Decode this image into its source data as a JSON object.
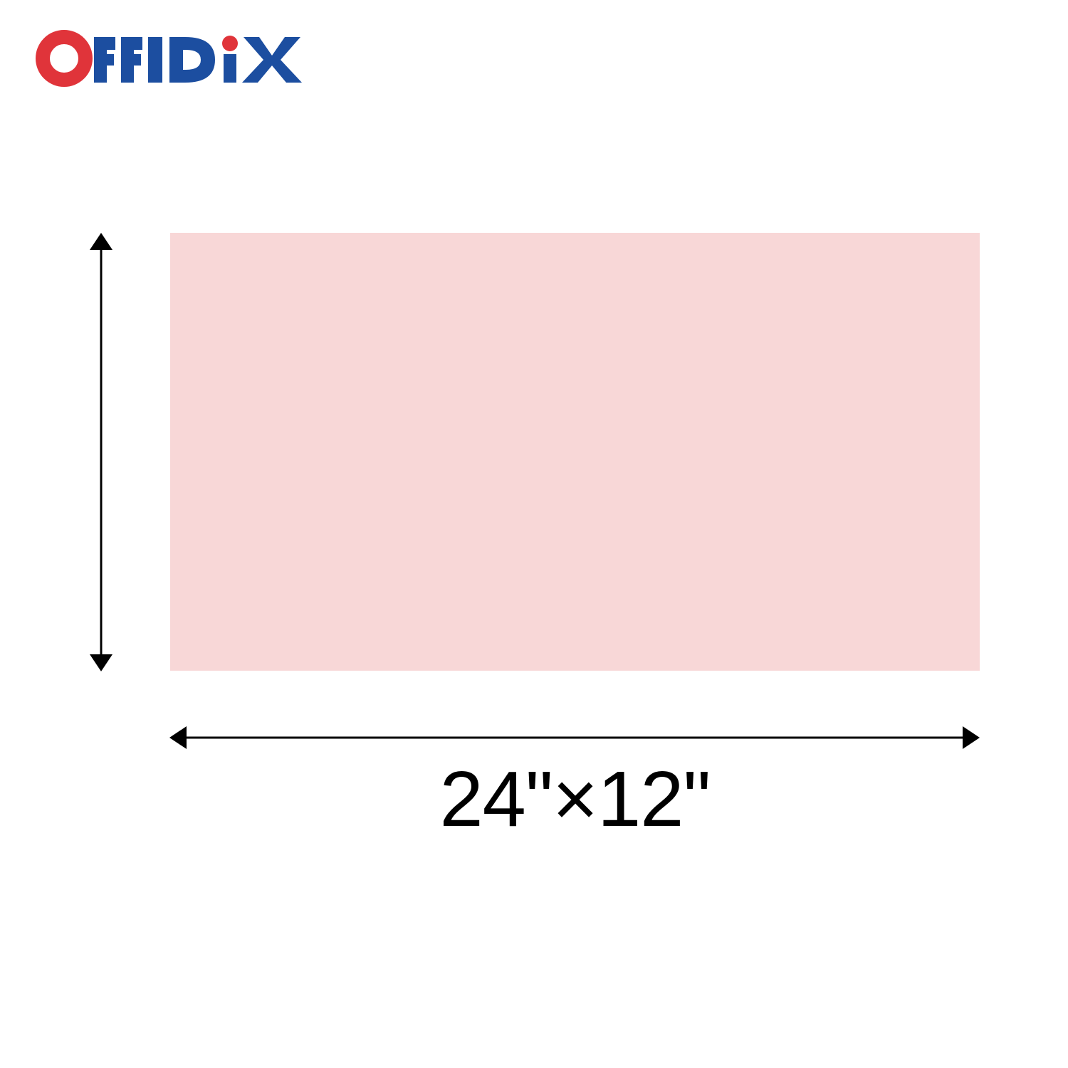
{
  "brand": {
    "logo_text": "OFFIDIX",
    "colors": {
      "red": "#e0343a",
      "blue": "#1c4ea0"
    }
  },
  "panel": {
    "color": "#f8d7d7"
  },
  "dimension": {
    "label": "24\"×12\""
  },
  "icons": {
    "vertical_arrow": "double-headed-vertical-arrow",
    "horizontal_arrow": "double-headed-horizontal-arrow"
  }
}
